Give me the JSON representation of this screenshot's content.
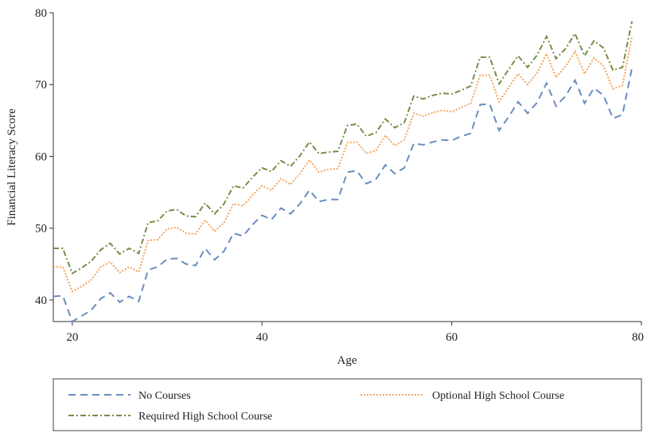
{
  "chart_data": {
    "type": "line",
    "xlabel": "Age",
    "ylabel": "Financial Literacy Score",
    "xlim": [
      18,
      80
    ],
    "ylim": [
      37,
      80
    ],
    "xticks": [
      20,
      40,
      60,
      80
    ],
    "yticks": [
      40,
      50,
      60,
      70,
      80
    ],
    "xtick_labels": [
      "20",
      "40",
      "60",
      "80"
    ],
    "ytick_labels": [
      "40",
      "50",
      "60",
      "70",
      "80"
    ],
    "grid": false,
    "legend_position": "bottom",
    "series": [
      {
        "name": "No Courses",
        "color": "#6b8cc0",
        "dash": "dashed",
        "x": [
          18,
          19,
          20,
          21,
          22,
          23,
          24,
          25,
          26,
          27,
          28,
          29,
          30,
          31,
          32,
          33,
          34,
          35,
          36,
          37,
          38,
          39,
          40,
          41,
          42,
          43,
          44,
          45,
          46,
          47,
          48,
          49,
          50,
          51,
          52,
          53,
          54,
          55,
          56,
          57,
          58,
          59,
          60,
          61,
          62,
          63,
          64,
          65,
          66,
          67,
          68,
          69,
          70,
          71,
          72,
          73,
          74,
          75,
          76,
          77,
          78,
          79
        ],
        "y": [
          40.5,
          40.6,
          37.0,
          37.8,
          38.6,
          40.2,
          41.0,
          39.7,
          40.5,
          39.8,
          44.2,
          44.6,
          45.7,
          45.8,
          45.0,
          44.8,
          47.2,
          45.6,
          46.8,
          49.3,
          48.9,
          50.5,
          51.8,
          51.2,
          52.8,
          52.0,
          53.4,
          55.3,
          53.7,
          54.0,
          54.0,
          57.8,
          58.0,
          56.2,
          56.8,
          58.8,
          57.6,
          58.4,
          61.8,
          61.6,
          62.0,
          62.3,
          62.2,
          62.8,
          63.2,
          67.2,
          67.3,
          63.6,
          65.5,
          67.6,
          66.0,
          67.5,
          70.2,
          67.0,
          68.4,
          70.6,
          67.4,
          69.5,
          68.5,
          65.3,
          65.8,
          72.3
        ]
      },
      {
        "name": "Optional High School Course",
        "color": "#f3a65c",
        "dash": "dotted",
        "x": [
          18,
          19,
          20,
          21,
          22,
          23,
          24,
          25,
          26,
          27,
          28,
          29,
          30,
          31,
          32,
          33,
          34,
          35,
          36,
          37,
          38,
          39,
          40,
          41,
          42,
          43,
          44,
          45,
          46,
          47,
          48,
          49,
          50,
          51,
          52,
          53,
          54,
          55,
          56,
          57,
          58,
          59,
          60,
          61,
          62,
          63,
          64,
          65,
          66,
          67,
          68,
          69,
          70,
          71,
          72,
          73,
          74,
          75,
          76,
          77,
          78,
          79
        ],
        "y": [
          44.6,
          44.6,
          41.2,
          41.9,
          42.8,
          44.6,
          45.3,
          43.8,
          44.6,
          43.9,
          48.3,
          48.4,
          49.9,
          50.1,
          49.3,
          49.2,
          51.1,
          49.6,
          50.8,
          53.4,
          53.1,
          54.6,
          55.9,
          55.3,
          56.9,
          56.1,
          57.6,
          59.5,
          57.8,
          58.2,
          58.3,
          61.9,
          62.0,
          60.4,
          60.8,
          62.9,
          61.5,
          62.3,
          66.0,
          65.6,
          66.1,
          66.4,
          66.2,
          66.8,
          67.4,
          71.3,
          71.3,
          67.6,
          69.6,
          71.5,
          70.0,
          71.6,
          74.3,
          71.0,
          72.5,
          74.6,
          71.5,
          73.7,
          72.6,
          69.4,
          69.9,
          76.7
        ]
      },
      {
        "name": "Required High School Course",
        "color": "#7a8c45",
        "dash": "dashdot",
        "x": [
          18,
          19,
          20,
          21,
          22,
          23,
          24,
          25,
          26,
          27,
          28,
          29,
          30,
          31,
          32,
          33,
          34,
          35,
          36,
          37,
          38,
          39,
          40,
          41,
          42,
          43,
          44,
          45,
          46,
          47,
          48,
          49,
          50,
          51,
          52,
          53,
          54,
          55,
          56,
          57,
          58,
          59,
          60,
          61,
          62,
          63,
          64,
          65,
          66,
          67,
          68,
          69,
          70,
          71,
          72,
          73,
          74,
          75,
          76,
          77,
          78,
          79
        ],
        "y": [
          47.2,
          47.2,
          43.7,
          44.5,
          45.4,
          47.0,
          47.9,
          46.4,
          47.2,
          46.5,
          50.8,
          51.0,
          52.4,
          52.6,
          51.7,
          51.6,
          53.5,
          52.0,
          53.4,
          55.9,
          55.6,
          57.1,
          58.4,
          57.9,
          59.4,
          58.6,
          60.1,
          62.0,
          60.4,
          60.6,
          60.7,
          64.3,
          64.5,
          62.8,
          63.3,
          65.2,
          64.0,
          64.7,
          68.4,
          68.0,
          68.5,
          68.8,
          68.7,
          69.2,
          69.8,
          73.8,
          73.8,
          70.1,
          72.1,
          74.0,
          72.4,
          74.1,
          76.7,
          73.6,
          75.0,
          77.1,
          74.0,
          76.1,
          75.1,
          72.0,
          72.4,
          78.8
        ]
      }
    ]
  }
}
